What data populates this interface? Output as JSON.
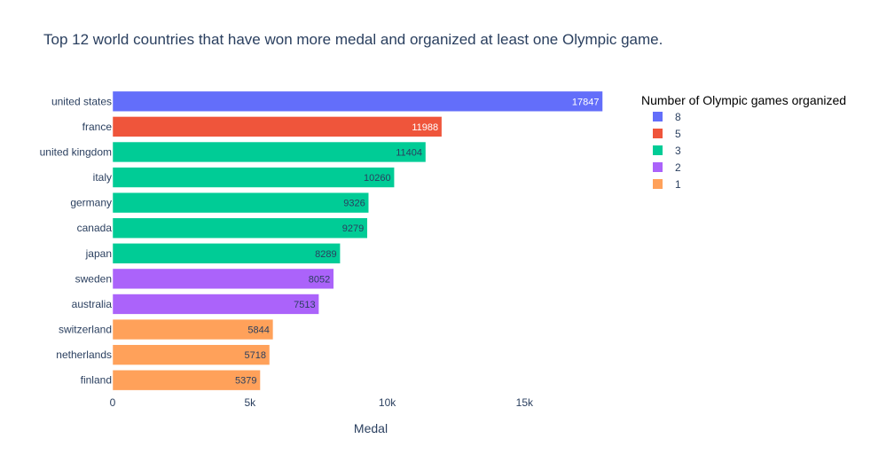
{
  "chart_data": {
    "type": "bar",
    "orientation": "horizontal",
    "title": "Top 12 world countries that have won more medal and organized at  least one Olympic game.",
    "xlabel": "Medal",
    "ylabel": "",
    "xlim": [
      0,
      18800
    ],
    "x_ticks": [
      {
        "value": 0,
        "label": "0"
      },
      {
        "value": 5000,
        "label": "5k"
      },
      {
        "value": 10000,
        "label": "10k"
      },
      {
        "value": 15000,
        "label": "15k"
      }
    ],
    "grid": false,
    "categories": [
      "united states",
      "france",
      "united kingdom",
      "italy",
      "germany",
      "canada",
      "japan",
      "sweden",
      "australia",
      "switzerland",
      "netherlands",
      "finland"
    ],
    "values": [
      17847,
      11988,
      11404,
      10260,
      9326,
      9279,
      8289,
      8052,
      7513,
      5844,
      5718,
      5379
    ],
    "games_organized": [
      "8",
      "5",
      "3",
      "3",
      "3",
      "3",
      "3",
      "2",
      "2",
      "1",
      "1",
      "1"
    ],
    "legend": {
      "title": "Number of Olympic games organized",
      "placement": "top-right",
      "entries": [
        {
          "name": "8",
          "color": "#636efa"
        },
        {
          "name": "5",
          "color": "#ef553b"
        },
        {
          "name": "3",
          "color": "#00cc96"
        },
        {
          "name": "2",
          "color": "#ab63fa"
        },
        {
          "name": "1",
          "color": "#ffa15a"
        }
      ]
    }
  }
}
